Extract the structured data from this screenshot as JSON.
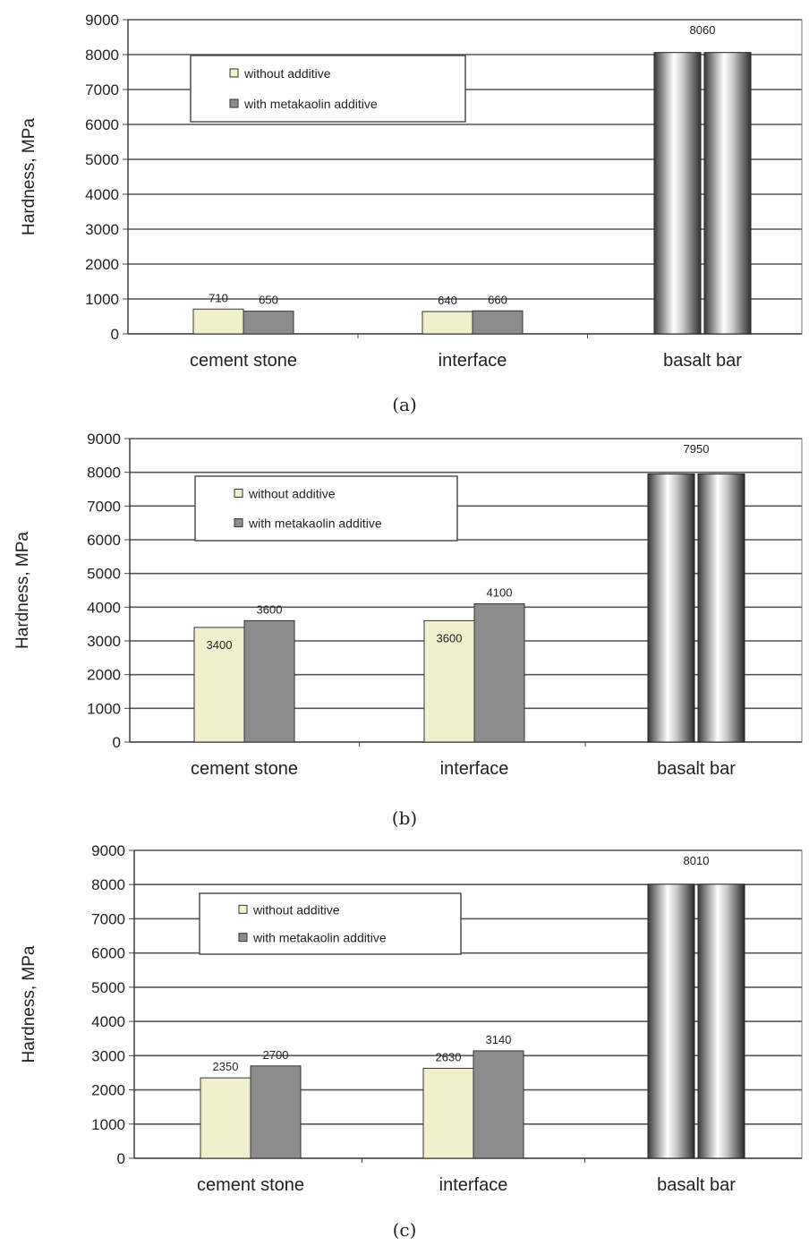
{
  "chart_data": [
    {
      "type": "bar",
      "caption": "(a)",
      "ylabel": "Hardness, MPa",
      "ylim": [
        0,
        9000
      ],
      "yticks": [
        0,
        1000,
        2000,
        3000,
        4000,
        5000,
        6000,
        7000,
        8000,
        9000
      ],
      "grid": true,
      "legend_position": "top-left",
      "categories": [
        "cement stone",
        "interface",
        "basalt bar"
      ],
      "series": [
        {
          "name": "without additive",
          "values": [
            710,
            640,
            null
          ],
          "labels": [
            "710",
            "640",
            null
          ],
          "color": "#f0f0cc"
        },
        {
          "name": "with metakaolin additive",
          "values": [
            650,
            660,
            null
          ],
          "labels": [
            "650",
            "660",
            null
          ],
          "color": "#8c8c8c"
        }
      ],
      "basalt_bar": {
        "value": 8060,
        "label": "8060"
      }
    },
    {
      "type": "bar",
      "caption": "(b)",
      "ylabel": "Hardness, MPa",
      "ylim": [
        0,
        9000
      ],
      "yticks": [
        0,
        1000,
        2000,
        3000,
        4000,
        5000,
        6000,
        7000,
        8000,
        9000
      ],
      "grid": true,
      "legend_position": "top-left",
      "categories": [
        "cement stone",
        "interface",
        "basalt bar"
      ],
      "series": [
        {
          "name": "without additive",
          "values": [
            3400,
            3600,
            null
          ],
          "labels": [
            "3400",
            "3600",
            null
          ],
          "color": "#f0f0cc"
        },
        {
          "name": "with metakaolin additive",
          "values": [
            3600,
            4100,
            null
          ],
          "labels": [
            "3600",
            "4100",
            null
          ],
          "color": "#8c8c8c"
        }
      ],
      "basalt_bar": {
        "value": 7950,
        "label": "7950"
      }
    },
    {
      "type": "bar",
      "caption": "(c)",
      "ylabel": "Hardness, MPa",
      "ylim": [
        0,
        9000
      ],
      "yticks": [
        0,
        1000,
        2000,
        3000,
        4000,
        5000,
        6000,
        7000,
        8000,
        9000
      ],
      "grid": true,
      "legend_position": "top-left",
      "categories": [
        "cement stone",
        "interface",
        "basalt bar"
      ],
      "series": [
        {
          "name": "without additive",
          "values": [
            2350,
            2630,
            null
          ],
          "labels": [
            "2350",
            "2630",
            null
          ],
          "color": "#f0f0cc"
        },
        {
          "name": "with metakaolin additive",
          "values": [
            2700,
            3140,
            null
          ],
          "labels": [
            "2700",
            "3140",
            null
          ],
          "color": "#8c8c8c"
        }
      ],
      "basalt_bar": {
        "value": 8010,
        "label": "8010"
      }
    }
  ]
}
